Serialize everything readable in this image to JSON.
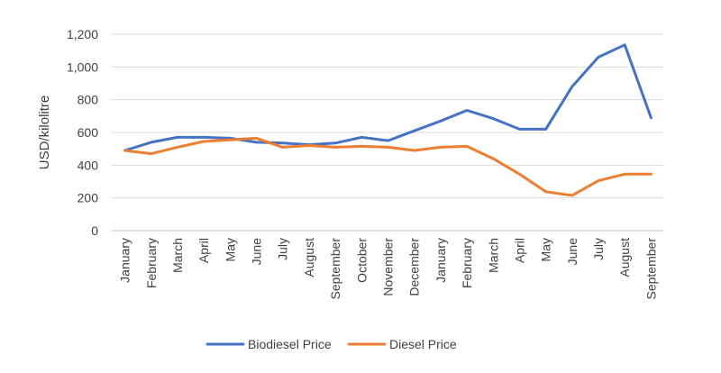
{
  "chart_data": {
    "type": "line",
    "title": "",
    "xlabel": "",
    "ylabel": "USD/kilolitre",
    "ylim": [
      0,
      1200
    ],
    "yticks": [
      0,
      200,
      400,
      600,
      800,
      1000,
      1200
    ],
    "ytick_labels": [
      "0",
      "200",
      "400",
      "600",
      "800",
      "1,000",
      "1,200"
    ],
    "grid": true,
    "legend_position": "bottom",
    "categories": [
      "January",
      "February",
      "March",
      "April",
      "May",
      "June",
      "July",
      "August",
      "September",
      "October",
      "November",
      "December",
      "January",
      "February",
      "March",
      "April",
      "May",
      "June",
      "July",
      "August",
      "September"
    ],
    "series": [
      {
        "name": "Biodiesel Price",
        "color": "#4472c4",
        "values": [
          490,
          540,
          570,
          570,
          565,
          540,
          535,
          525,
          535,
          570,
          550,
          610,
          670,
          735,
          685,
          620,
          620,
          880,
          1060,
          1135,
          690
        ]
      },
      {
        "name": "Diesel Price",
        "color": "#ed7d31",
        "values": [
          490,
          470,
          510,
          545,
          555,
          565,
          510,
          520,
          510,
          515,
          510,
          490,
          510,
          515,
          440,
          345,
          238,
          215,
          305,
          345,
          345
        ]
      }
    ]
  }
}
